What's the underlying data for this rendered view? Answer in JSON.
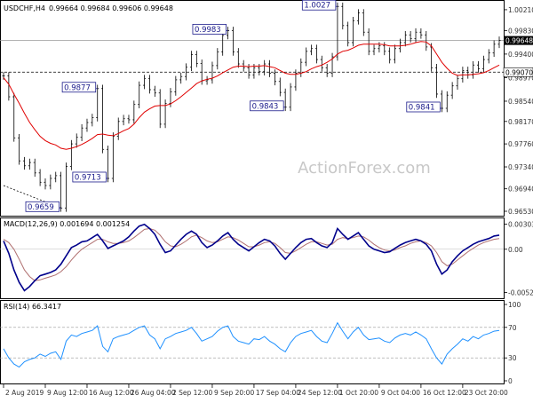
{
  "header": {
    "label": "USDCHF,H4",
    "ohlc": "0.99664 0.99684 0.99606 0.99648"
  },
  "watermark": "ActionForex.com",
  "colors": {
    "price": "#000000",
    "ma": "#e00000",
    "macd": "#00008b",
    "signal": "#b07070",
    "rsi": "#1e90ff",
    "callout_border": "#1a1a8a",
    "grid": "#000000"
  },
  "chart_data": [
    {
      "type": "line",
      "name": "price",
      "ylim": [
        0.9653,
        1.0029
      ],
      "yticks": [
        "1.00210",
        "0.99830",
        "0.99400",
        "0.98970",
        "0.98540",
        "0.98170",
        "0.97760",
        "0.97340",
        "0.96940",
        "0.96530"
      ],
      "current_price": "0.99648",
      "hline_level": "0.99070",
      "series_points": [
        [
          "2 Aug 2019",
          0.99
        ],
        [
          "",
          0.9862
        ],
        [
          "",
          0.9787
        ],
        [
          "",
          0.9745
        ],
        [
          "",
          0.9736
        ],
        [
          "",
          0.9742
        ],
        [
          "",
          0.9723
        ],
        [
          "",
          0.9706
        ],
        [
          "9 Aug 12:00",
          0.97
        ],
        [
          "",
          0.9713
        ],
        [
          "",
          0.9718
        ],
        [
          "",
          0.9659
        ],
        [
          "",
          0.9735
        ],
        [
          "",
          0.9776
        ],
        [
          "",
          0.9788
        ],
        [
          "",
          0.9805
        ],
        [
          "16 Aug 12:00",
          0.9815
        ],
        [
          "",
          0.9824
        ],
        [
          "",
          0.9877
        ],
        [
          "",
          0.9766
        ],
        [
          "",
          0.9713
        ],
        [
          "",
          0.979
        ],
        [
          "",
          0.9817
        ],
        [
          "",
          0.9822
        ],
        [
          "26 Aug 04:00",
          0.982
        ],
        [
          "",
          0.9848
        ],
        [
          "",
          0.9883
        ],
        [
          "",
          0.9895
        ],
        [
          "",
          0.9875
        ],
        [
          "",
          0.9869
        ],
        [
          "",
          0.9812
        ],
        [
          "",
          0.985
        ],
        [
          "2 Sep 12:00",
          0.9871
        ],
        [
          "",
          0.9893
        ],
        [
          "",
          0.9899
        ],
        [
          "",
          0.9916
        ],
        [
          "",
          0.9939
        ],
        [
          "",
          0.9923
        ],
        [
          "",
          0.9891
        ],
        [
          "",
          0.9893
        ],
        [
          "9 Sep 20:00",
          0.9919
        ],
        [
          "",
          0.9944
        ],
        [
          "",
          0.9974
        ],
        [
          "",
          0.9983
        ],
        [
          "",
          0.9944
        ],
        [
          "",
          0.9922
        ],
        [
          "",
          0.9915
        ],
        [
          "",
          0.9902
        ],
        [
          "17 Sep 04:00",
          0.9915
        ],
        [
          "",
          0.9908
        ],
        [
          "",
          0.9922
        ],
        [
          "",
          0.9905
        ],
        [
          "",
          0.989
        ],
        [
          "",
          0.987
        ],
        [
          "",
          0.9843
        ],
        [
          "",
          0.988
        ],
        [
          "24 Sep 12:00",
          0.9905
        ],
        [
          "",
          0.9925
        ],
        [
          "",
          0.9945
        ],
        [
          "",
          0.995
        ],
        [
          "",
          0.993
        ],
        [
          "",
          0.9915
        ],
        [
          "",
          0.9905
        ],
        [
          "",
          0.9935
        ],
        [
          "1 Oct 20:00",
          1.0027
        ],
        [
          "",
          0.9992
        ],
        [
          "",
          0.9961
        ],
        [
          "",
          1.0001
        ],
        [
          "",
          1.0015
        ],
        [
          "",
          0.998
        ],
        [
          "",
          0.9945
        ],
        [
          "",
          0.995
        ],
        [
          "9 Oct 04:00",
          0.9955
        ],
        [
          "",
          0.9945
        ],
        [
          "",
          0.993
        ],
        [
          "",
          0.995
        ],
        [
          "",
          0.9961
        ],
        [
          "",
          0.9975
        ],
        [
          "",
          0.9968
        ],
        [
          "",
          0.998
        ],
        [
          "16 Oct 12:00",
          0.9975
        ],
        [
          "",
          0.9953
        ],
        [
          "",
          0.9915
        ],
        [
          "",
          0.9867
        ],
        [
          "",
          0.9841
        ],
        [
          "",
          0.9865
        ],
        [
          "",
          0.9882
        ],
        [
          "",
          0.9895
        ],
        [
          "23 Oct 20:00",
          0.991
        ],
        [
          "",
          0.9902
        ],
        [
          "",
          0.992
        ],
        [
          "",
          0.9913
        ],
        [
          "",
          0.993
        ],
        [
          "",
          0.9942
        ],
        [
          "",
          0.9958
        ],
        [
          "",
          0.9965
        ]
      ],
      "ma_points": [
        0.9897,
        0.9885,
        0.9867,
        0.985,
        0.9832,
        0.9815,
        0.9802,
        0.979,
        0.9782,
        0.9777,
        0.9774,
        0.9768,
        0.9766,
        0.9768,
        0.9771,
        0.9775,
        0.978,
        0.9786,
        0.9793,
        0.9794,
        0.9792,
        0.9791,
        0.9795,
        0.98,
        0.9804,
        0.9812,
        0.9824,
        0.9834,
        0.984,
        0.9845,
        0.9846,
        0.9846,
        0.9849,
        0.9855,
        0.9862,
        0.987,
        0.9878,
        0.9886,
        0.9891,
        0.9894,
        0.9896,
        0.99,
        0.9906,
        0.9911,
        0.9916,
        0.9918,
        0.9918,
        0.9917,
        0.9918,
        0.9918,
        0.9919,
        0.9917,
        0.9915,
        0.991,
        0.9905,
        0.9903,
        0.9903,
        0.9905,
        0.9908,
        0.9913,
        0.9917,
        0.992,
        0.9925,
        0.9931,
        0.994,
        0.9945,
        0.9947,
        0.9951,
        0.9956,
        0.9958,
        0.9958,
        0.9958,
        0.9958,
        0.9957,
        0.9955,
        0.9955,
        0.9955,
        0.9956,
        0.9958,
        0.9961,
        0.9963,
        0.9962,
        0.9955,
        0.994,
        0.9925,
        0.9914,
        0.9905,
        0.9901,
        0.9902,
        0.9902,
        0.9903,
        0.9904,
        0.9906,
        0.991,
        0.9915,
        0.992
      ],
      "annotations": [
        {
          "label": "1.0027",
          "value": 1.0027,
          "index": 64
        },
        {
          "label": "0.9983",
          "value": 0.9983,
          "index": 43
        },
        {
          "label": "0.9877",
          "value": 0.9877,
          "index": 18
        },
        {
          "label": "0.9843",
          "value": 0.9843,
          "index": 54
        },
        {
          "label": "0.9841",
          "value": 0.9841,
          "index": 84
        },
        {
          "label": "0.9713",
          "value": 0.9713,
          "index": 20
        },
        {
          "label": "0.9659",
          "value": 0.9659,
          "index": 11
        }
      ],
      "trendline": {
        "from": 0.97,
        "to": 0.9659
      }
    },
    {
      "type": "line",
      "name": "MACD",
      "title": "MACD(12,26,9) 0.001694 0.001254",
      "ylim": [
        -0.0056,
        0.0033
      ],
      "yticks": [
        "0.00303",
        "0.00",
        "-0.005236"
      ],
      "macd_values": [
        0.001,
        -0.0005,
        -0.0025,
        -0.004,
        -0.005,
        -0.0045,
        -0.0038,
        -0.0032,
        -0.003,
        -0.0028,
        -0.0025,
        -0.0018,
        -0.0008,
        0.0002,
        0.0005,
        0.0009,
        0.001,
        0.0014,
        0.0018,
        0.001,
        0.0001,
        0.0004,
        0.0007,
        0.001,
        0.0015,
        0.0022,
        0.0028,
        0.003,
        0.0025,
        0.0018,
        0.0006,
        -0.0004,
        -0.0002,
        0.0005,
        0.0012,
        0.0018,
        0.0022,
        0.0018,
        0.0008,
        0.0002,
        0.0005,
        0.001,
        0.0016,
        0.002,
        0.0012,
        0.0006,
        0.0002,
        -0.0002,
        0.0003,
        0.0008,
        0.0012,
        0.001,
        0.0004,
        -0.0005,
        -0.0012,
        -0.0005,
        0.0002,
        0.0008,
        0.0012,
        0.0013,
        0.0008,
        0.0004,
        0.0002,
        0.0008,
        0.0025,
        0.0018,
        0.0012,
        0.0016,
        0.002,
        0.0012,
        0.0004,
        0.0,
        -0.0002,
        -0.0004,
        -0.0003,
        0.0001,
        0.0005,
        0.0008,
        0.001,
        0.0012,
        0.001,
        0.0006,
        -0.0002,
        -0.0018,
        -0.003,
        -0.0025,
        -0.0015,
        -0.0008,
        -0.0002,
        0.0002,
        0.0006,
        0.0009,
        0.0011,
        0.0013,
        0.0016,
        0.0017
      ],
      "signal_values": [
        0.0012,
        0.0008,
        0.0,
        -0.0012,
        -0.0025,
        -0.0033,
        -0.0038,
        -0.0037,
        -0.0035,
        -0.0033,
        -0.0031,
        -0.0027,
        -0.0021,
        -0.0013,
        -0.0006,
        0.0,
        0.0004,
        0.0008,
        0.0012,
        0.0012,
        0.0009,
        0.0007,
        0.0007,
        0.0008,
        0.001,
        0.0014,
        0.0019,
        0.0024,
        0.0025,
        0.0023,
        0.0017,
        0.0009,
        0.0004,
        0.0003,
        0.0006,
        0.001,
        0.0015,
        0.0017,
        0.0014,
        0.001,
        0.0008,
        0.0009,
        0.0012,
        0.0015,
        0.0014,
        0.0011,
        0.0007,
        0.0003,
        0.0003,
        0.0005,
        0.0008,
        0.0009,
        0.0007,
        0.0002,
        -0.0004,
        -0.0005,
        -0.0002,
        0.0002,
        0.0006,
        0.0009,
        0.0009,
        0.0007,
        0.0005,
        0.0006,
        0.0012,
        0.0014,
        0.0013,
        0.0014,
        0.0016,
        0.0015,
        0.0011,
        0.0006,
        0.0002,
        -0.0001,
        -0.0002,
        -0.0001,
        0.0002,
        0.0004,
        0.0007,
        0.0009,
        0.001,
        0.0008,
        0.0004,
        -0.0004,
        -0.0015,
        -0.002,
        -0.0018,
        -0.0013,
        -0.0008,
        -0.0003,
        0.0001,
        0.0005,
        0.0008,
        0.001,
        0.0012,
        0.0013
      ]
    },
    {
      "type": "line",
      "name": "RSI",
      "title": "RSI(14) 66.3417",
      "ylim": [
        0,
        100
      ],
      "yticks": [
        "100",
        "70",
        "30",
        "0"
      ],
      "levels": [
        70,
        30
      ],
      "values": [
        42,
        30,
        22,
        18,
        25,
        28,
        30,
        35,
        32,
        36,
        38,
        28,
        52,
        60,
        58,
        62,
        64,
        66,
        72,
        45,
        38,
        55,
        58,
        60,
        62,
        66,
        70,
        72,
        60,
        55,
        42,
        55,
        58,
        62,
        64,
        66,
        70,
        62,
        52,
        55,
        58,
        65,
        70,
        72,
        58,
        52,
        50,
        48,
        55,
        54,
        58,
        52,
        48,
        42,
        38,
        50,
        58,
        62,
        64,
        66,
        58,
        52,
        50,
        62,
        76,
        65,
        55,
        64,
        70,
        60,
        54,
        55,
        56,
        52,
        50,
        56,
        60,
        62,
        60,
        64,
        60,
        55,
        42,
        30,
        22,
        35,
        42,
        48,
        55,
        52,
        58,
        55,
        60,
        62,
        65,
        66
      ]
    }
  ],
  "x_axis": {
    "labels": [
      "2 Aug 2019",
      "9 Aug 12:00",
      "16 Aug 12:00",
      "26 Aug 04:00",
      "2 Sep 12:00",
      "9 Sep 20:00",
      "17 Sep 04:00",
      "24 Sep 12:00",
      "1 Oct 20:00",
      "9 Oct 04:00",
      "16 Oct 12:00",
      "23 Oct 20:00"
    ]
  }
}
